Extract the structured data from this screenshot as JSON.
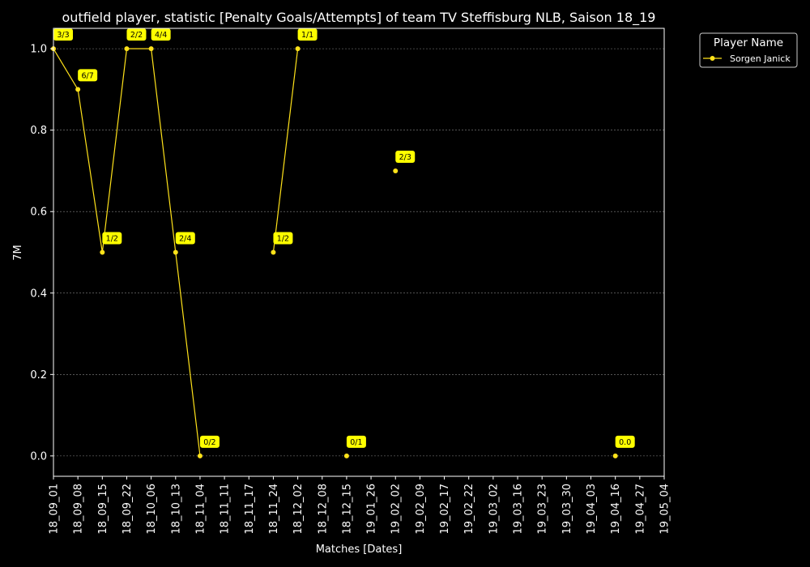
{
  "chart_data": {
    "type": "line",
    "title": "outfield player, statistic [Penalty Goals/Attempts] of team TV Steffisburg NLB, Saison 18_19",
    "xlabel": "Matches [Dates]",
    "ylabel": "7M",
    "ylim": [
      -0.05,
      1.05
    ],
    "yticks": [
      "0.0",
      "0.2",
      "0.4",
      "0.6",
      "0.8",
      "1.0"
    ],
    "yticks_values": [
      0.0,
      0.2,
      0.4,
      0.6,
      0.8,
      1.0
    ],
    "grid": true,
    "categories": [
      "18_09_01",
      "18_09_08",
      "18_09_15",
      "18_09_22",
      "18_10_06",
      "18_10_13",
      "18_11_04",
      "18_11_11",
      "18_11_17",
      "18_11_24",
      "18_12_02",
      "18_12_08",
      "18_12_15",
      "19_01_26",
      "19_02_02",
      "19_02_09",
      "19_02_17",
      "19_02_22",
      "19_03_02",
      "19_03_16",
      "19_03_23",
      "19_03_30",
      "19_04_03",
      "19_04_16",
      "19_04_27",
      "19_05_04"
    ],
    "legend": {
      "title": "Player Name",
      "placement": "outside-top-right"
    },
    "series": [
      {
        "name": "Sorgen Janick",
        "color": "#ffe21a",
        "points": [
          {
            "x": "18_09_01",
            "y": 1.0,
            "label": "3/3"
          },
          {
            "x": "18_09_08",
            "y": 0.9,
            "label": "6/7"
          },
          {
            "x": "18_09_15",
            "y": 0.5,
            "label": "1/2"
          },
          {
            "x": "18_09_22",
            "y": 1.0,
            "label": "2/2"
          },
          {
            "x": "18_10_06",
            "y": 1.0,
            "label": "4/4"
          },
          {
            "x": "18_10_13",
            "y": 0.5,
            "label": "2/4"
          },
          {
            "x": "18_11_04",
            "y": 0.0,
            "label": "0/2"
          },
          {
            "x": "18_11_11",
            "y": null
          },
          {
            "x": "18_11_17",
            "y": null
          },
          {
            "x": "18_11_24",
            "y": 0.5,
            "label": "1/2"
          },
          {
            "x": "18_12_02",
            "y": 1.0,
            "label": "1/1"
          },
          {
            "x": "18_12_08",
            "y": null
          },
          {
            "x": "18_12_15",
            "y": 0.0,
            "label": "0/1"
          },
          {
            "x": "19_01_26",
            "y": null
          },
          {
            "x": "19_02_02",
            "y": 0.7,
            "label": "2/3"
          },
          {
            "x": "19_02_09",
            "y": null
          },
          {
            "x": "19_02_17",
            "y": null
          },
          {
            "x": "19_02_22",
            "y": null
          },
          {
            "x": "19_03_02",
            "y": null
          },
          {
            "x": "19_03_16",
            "y": null
          },
          {
            "x": "19_03_23",
            "y": null
          },
          {
            "x": "19_03_30",
            "y": null
          },
          {
            "x": "19_04_03",
            "y": null
          },
          {
            "x": "19_04_16",
            "y": 0.0,
            "label": "0.0"
          },
          {
            "x": "19_04_27",
            "y": null
          },
          {
            "x": "19_05_04",
            "y": null
          }
        ]
      }
    ],
    "colors": {
      "background": "#000000",
      "axes": "#ffffff",
      "grid": "#888888",
      "annotation_bg": "#ffff00"
    }
  }
}
